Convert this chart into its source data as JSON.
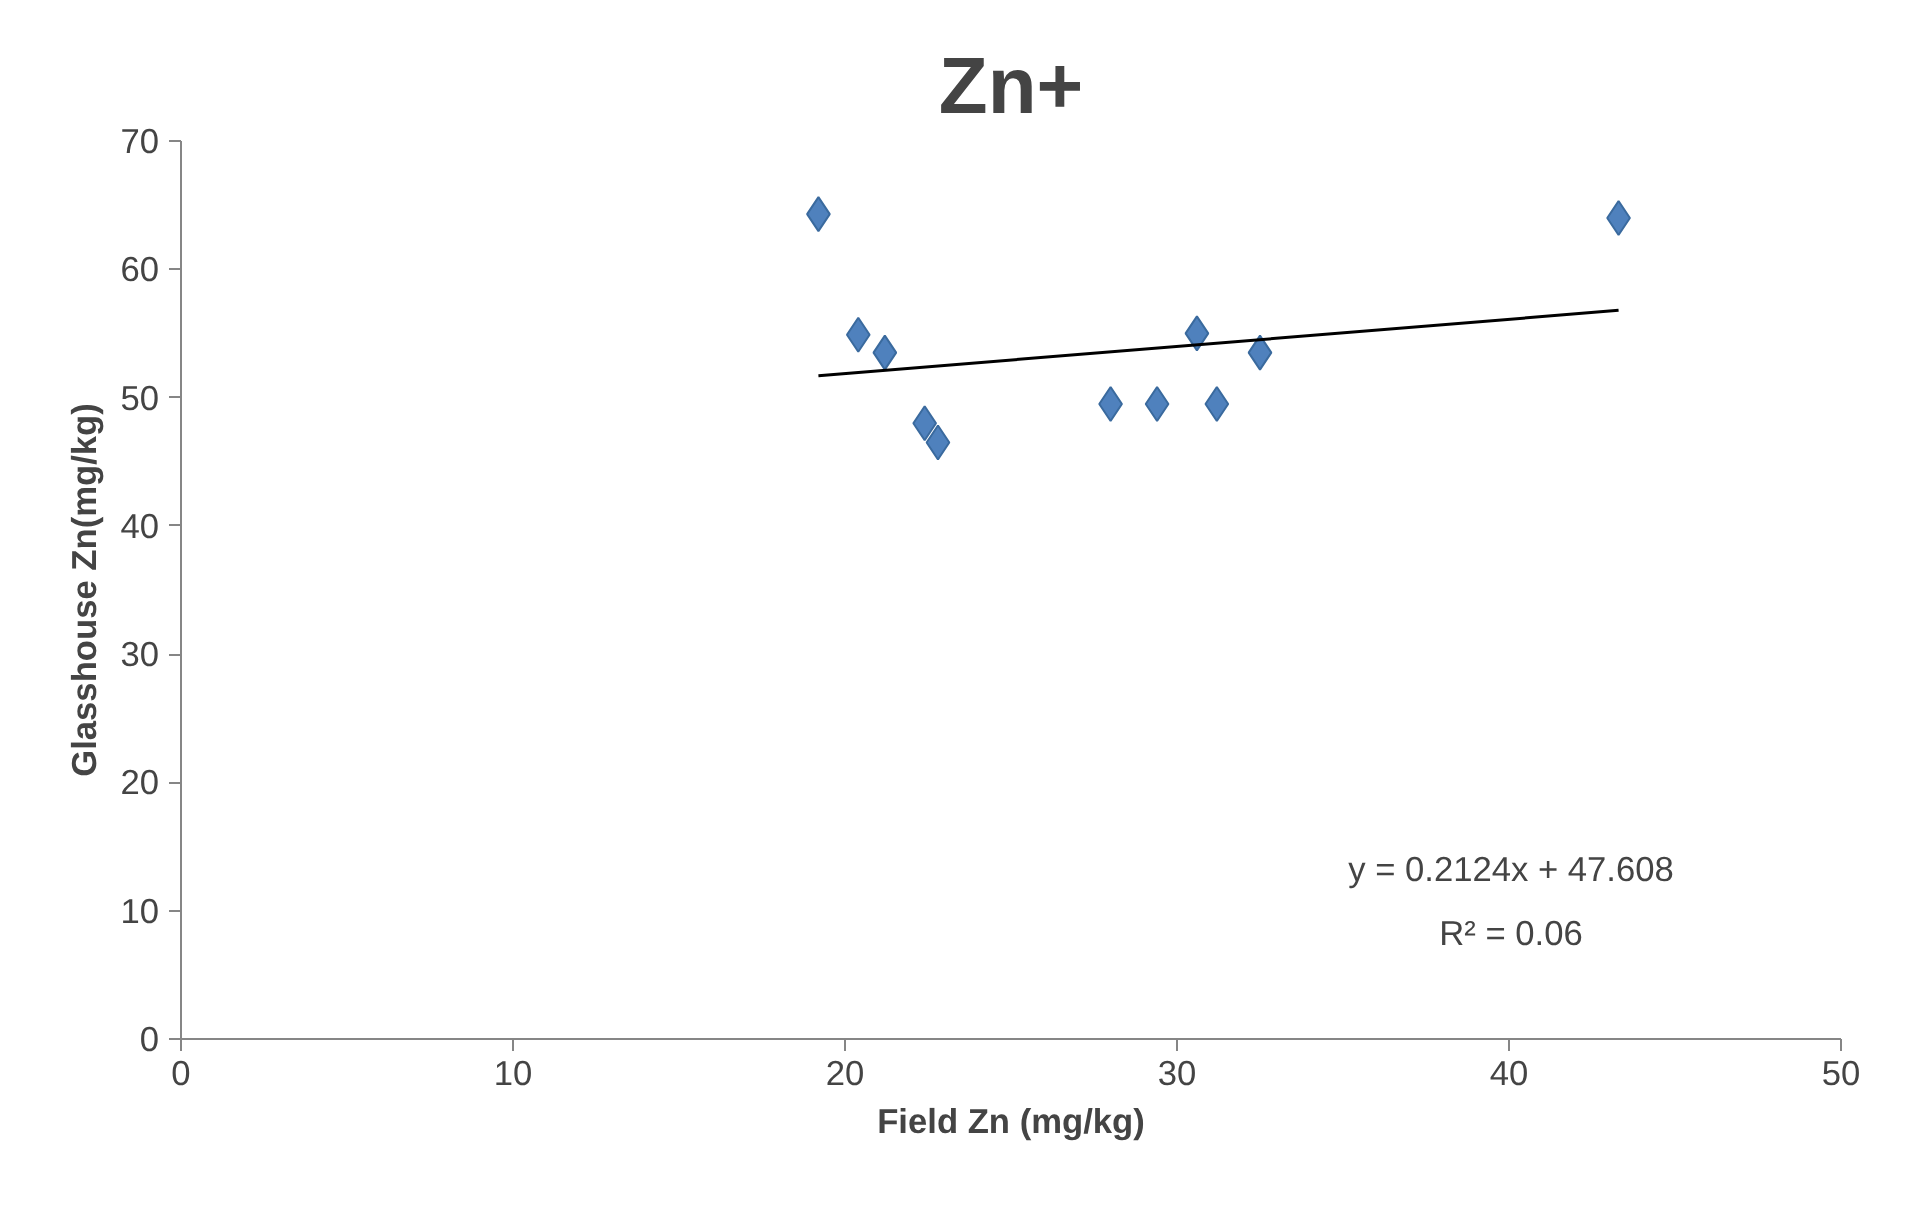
{
  "chart_data": {
    "type": "scatter",
    "title": "Zn+",
    "xlabel": "Field Zn (mg/kg)",
    "ylabel": "Glasshouse Zn(mg/kg)",
    "xlim": [
      0,
      50
    ],
    "xticks": [
      0,
      10,
      20,
      30,
      40,
      50
    ],
    "ylim": [
      0,
      70
    ],
    "yticks": [
      0,
      10,
      20,
      30,
      40,
      50,
      60,
      70
    ],
    "grid": false,
    "series": [
      {
        "marker": "diamond",
        "color": "#4f81bd",
        "x": [
          19.2,
          20.4,
          21.2,
          22.4,
          22.8,
          28.0,
          29.4,
          30.6,
          31.2,
          32.5,
          43.3
        ],
        "values": [
          64.3,
          54.9,
          53.5,
          48.0,
          46.5,
          49.5,
          49.5,
          55.0,
          49.5,
          53.5,
          64.0
        ]
      },
      {
        "type": "line",
        "color": "#000000",
        "x": [
          19.2,
          43.3
        ],
        "values": [
          51.7,
          56.8
        ]
      }
    ],
    "annotations": [
      "y = 0.2124x + 47.608",
      "R² = 0.06"
    ]
  }
}
